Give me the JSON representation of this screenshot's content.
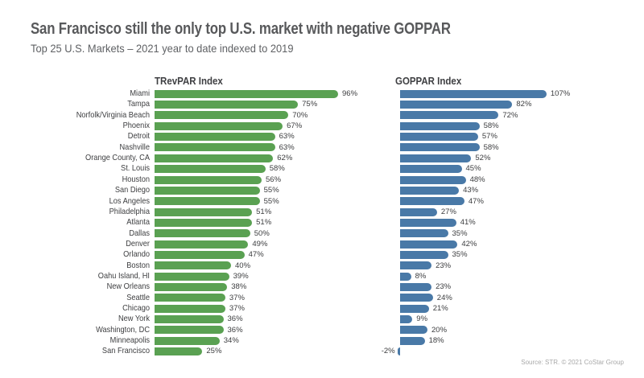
{
  "header": {
    "title": "San Francisco still the only top U.S. market with negative GOPPAR",
    "subtitle": "Top 25 U.S. Markets – 2021 year to date indexed to 2019"
  },
  "footer": {
    "source": "Source: STR. © 2021 CoStar Group"
  },
  "colors": {
    "trevpar_green": "#5aa152",
    "goppar_blue": "#4979a7",
    "title_gray": "#58595b",
    "label_gray": "#3c3d3f",
    "source_gray": "#a8a8a8"
  },
  "chart_data": {
    "type": "bar",
    "orientation": "horizontal",
    "title": "San Francisco still the only top U.S. market with negative GOPPAR",
    "subtitle": "Top 25 U.S. Markets – 2021 year to date indexed to 2019",
    "unit": "%",
    "value_labels": true,
    "grid": false,
    "legend_position": "none",
    "categories": [
      "Miami",
      "Tampa",
      "Norfolk/Virginia Beach",
      "Phoenix",
      "Detroit",
      "Nashville",
      "Orange County, CA",
      "St. Louis",
      "Houston",
      "San Diego",
      "Los Angeles",
      "Philadelphia",
      "Atlanta",
      "Dallas",
      "Denver",
      "Orlando",
      "Boston",
      "Oahu Island, HI",
      "New Orleans",
      "Seattle",
      "Chicago",
      "New York",
      "Washington, DC",
      "Minneapolis",
      "San Francisco"
    ],
    "series": [
      {
        "name": "TRevPAR Index",
        "color": "#5aa152",
        "xlim": [
          0,
          110
        ],
        "values": [
          96,
          75,
          70,
          67,
          63,
          63,
          62,
          58,
          56,
          55,
          55,
          51,
          51,
          50,
          49,
          47,
          40,
          39,
          38,
          37,
          37,
          36,
          36,
          34,
          25
        ]
      },
      {
        "name": "GOPPAR Index",
        "color": "#4979a7",
        "xlim": [
          -10,
          115
        ],
        "values": [
          107,
          82,
          72,
          58,
          57,
          58,
          52,
          45,
          48,
          43,
          47,
          27,
          41,
          35,
          42,
          35,
          23,
          8,
          23,
          24,
          21,
          9,
          20,
          18,
          -2
        ]
      }
    ]
  }
}
